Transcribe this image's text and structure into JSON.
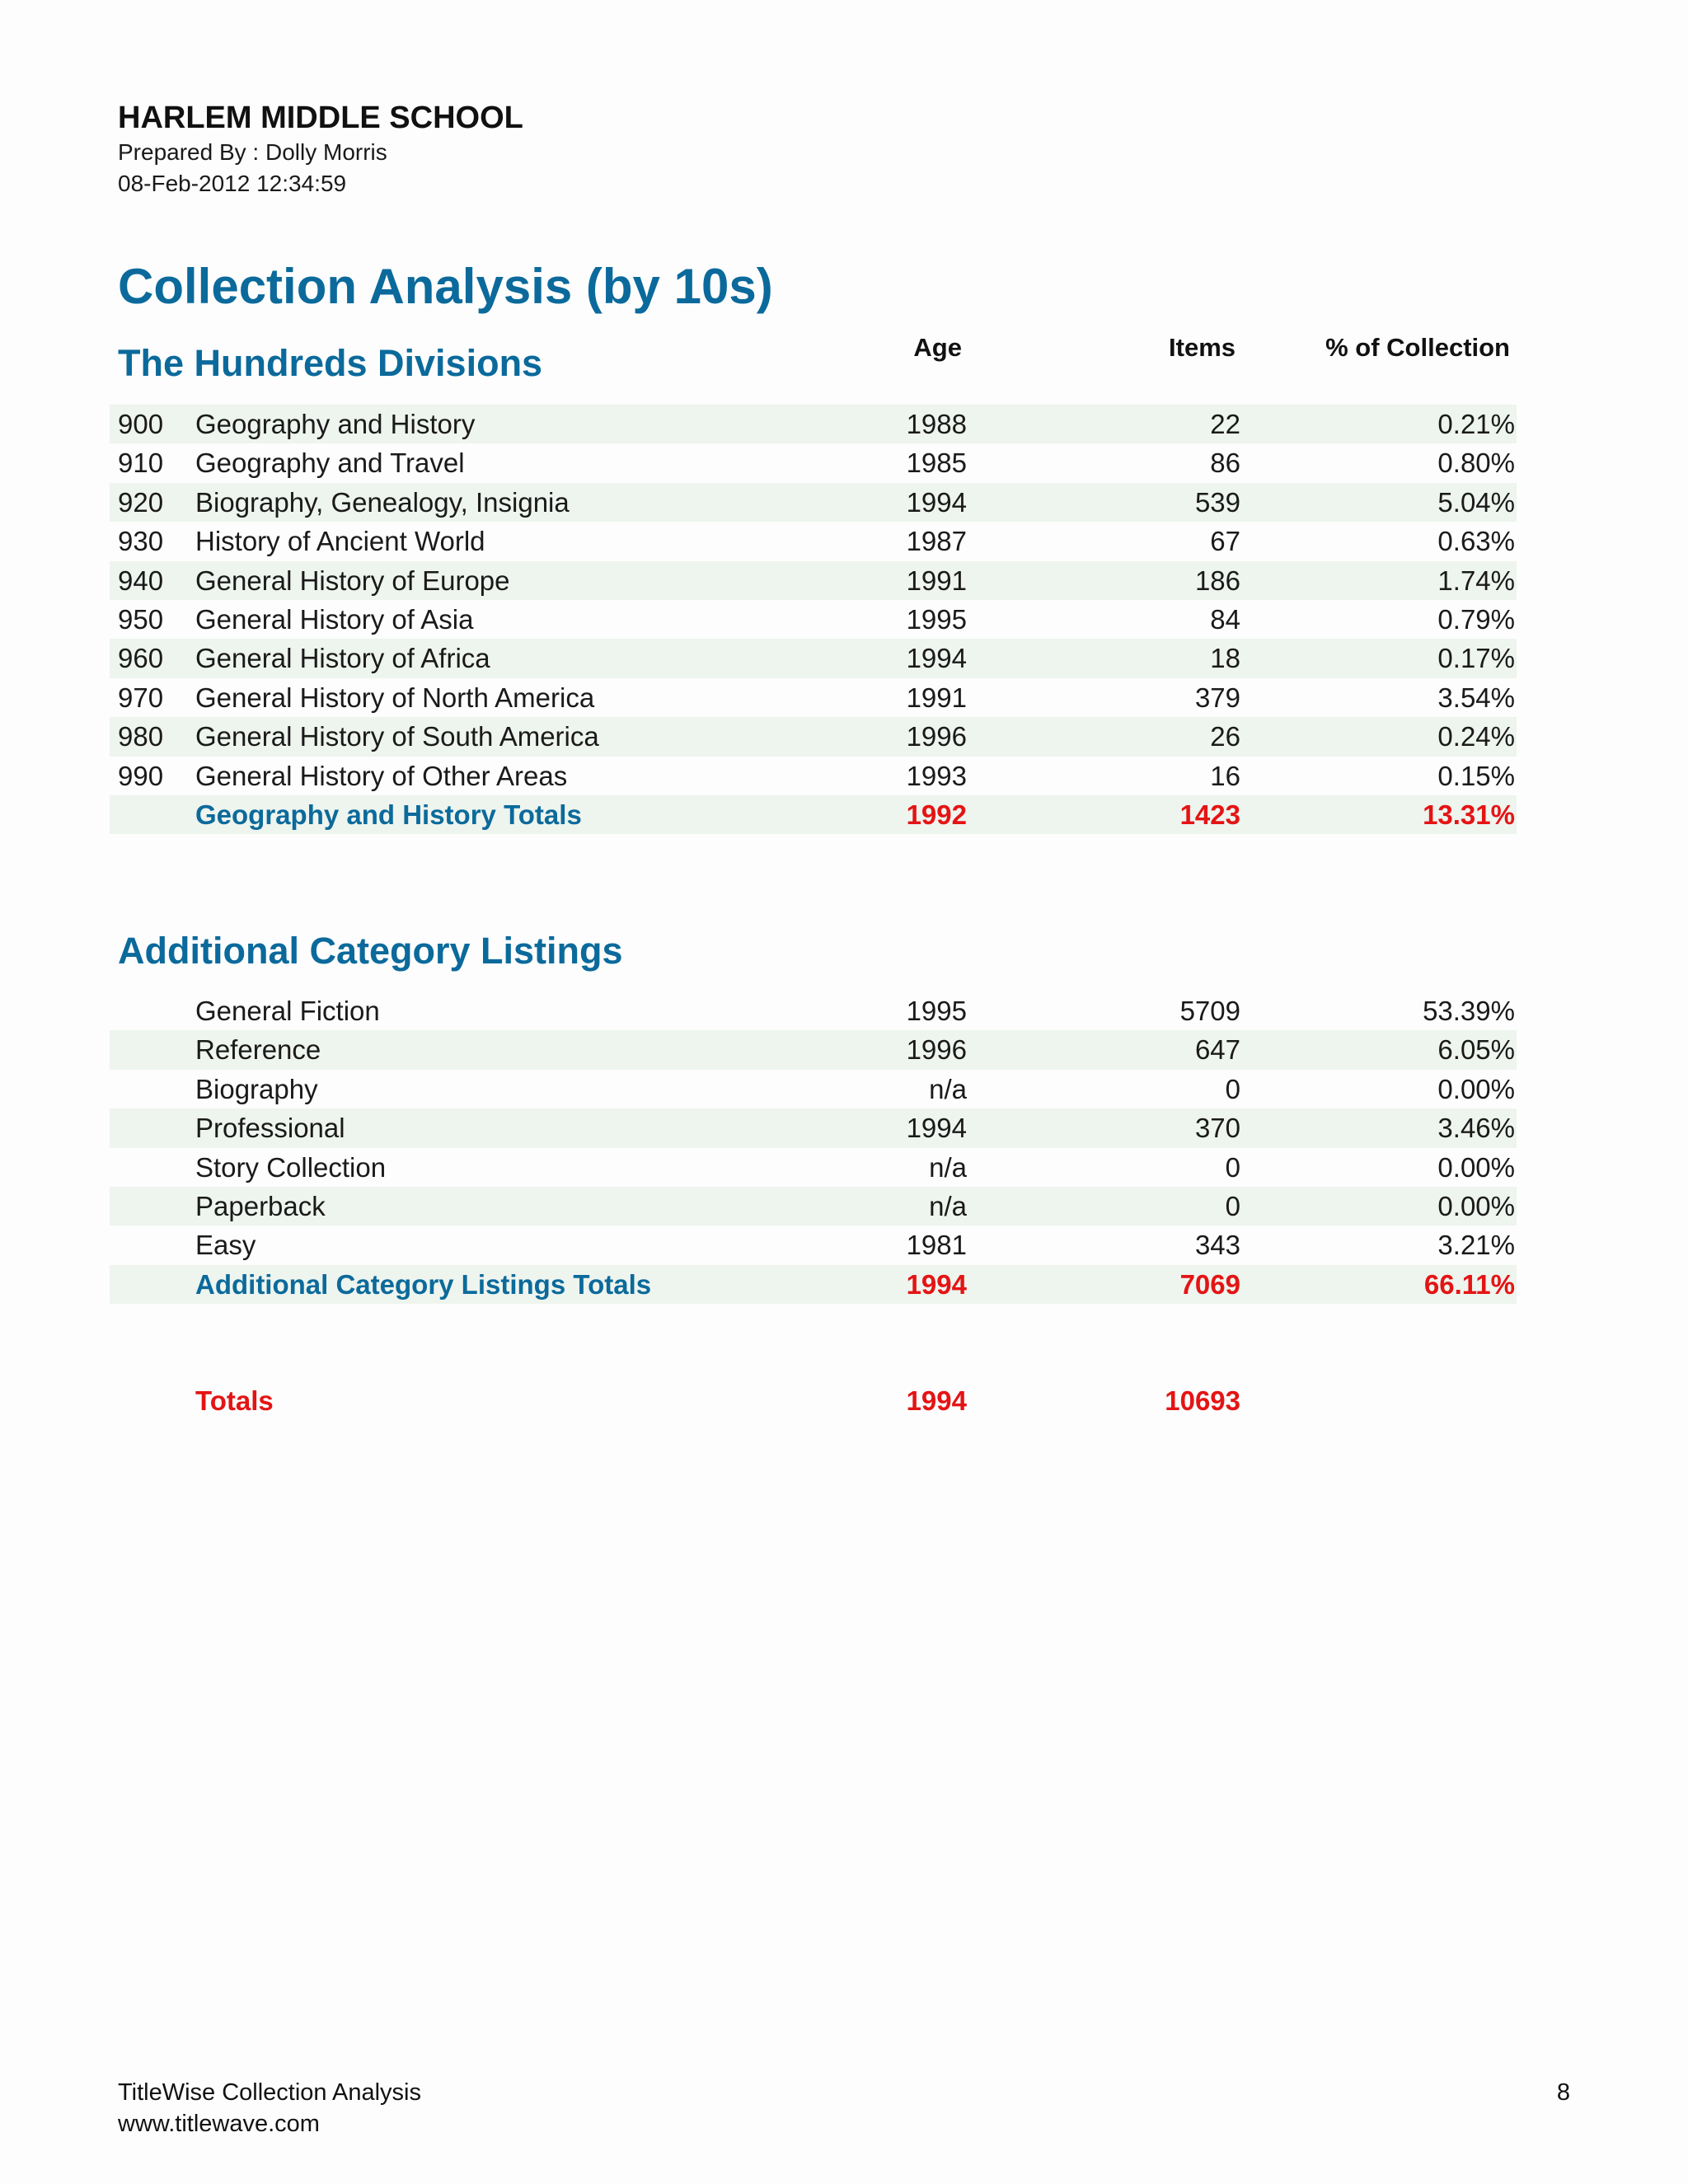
{
  "header": {
    "school": "HARLEM MIDDLE SCHOOL",
    "prepared_by": "Prepared By : Dolly Morris",
    "timestamp": "08-Feb-2012 12:34:59"
  },
  "report_title": "Collection Analysis (by 10s)",
  "columns": {
    "age": "Age",
    "items": "Items",
    "pct": "% of Collection"
  },
  "hundreds": {
    "title": "The Hundreds Divisions",
    "rows": [
      {
        "code": "900",
        "name": "Geography and History",
        "age": "1988",
        "items": "22",
        "pct": "0.21%"
      },
      {
        "code": "910",
        "name": "Geography and Travel",
        "age": "1985",
        "items": "86",
        "pct": "0.80%"
      },
      {
        "code": "920",
        "name": "Biography, Genealogy, Insignia",
        "age": "1994",
        "items": "539",
        "pct": "5.04%"
      },
      {
        "code": "930",
        "name": "History of Ancient World",
        "age": "1987",
        "items": "67",
        "pct": "0.63%"
      },
      {
        "code": "940",
        "name": "General History of Europe",
        "age": "1991",
        "items": "186",
        "pct": "1.74%"
      },
      {
        "code": "950",
        "name": "General History of Asia",
        "age": "1995",
        "items": "84",
        "pct": "0.79%"
      },
      {
        "code": "960",
        "name": "General History of Africa",
        "age": "1994",
        "items": "18",
        "pct": "0.17%"
      },
      {
        "code": "970",
        "name": "General History of North America",
        "age": "1991",
        "items": "379",
        "pct": "3.54%"
      },
      {
        "code": "980",
        "name": "General History of South America",
        "age": "1996",
        "items": "26",
        "pct": "0.24%"
      },
      {
        "code": "990",
        "name": "General History of Other Areas",
        "age": "1993",
        "items": "16",
        "pct": "0.15%"
      }
    ],
    "total": {
      "name": "Geography and History Totals",
      "age": "1992",
      "items": "1423",
      "pct": "13.31%"
    }
  },
  "additional": {
    "title": "Additional Category Listings",
    "rows": [
      {
        "name": "General Fiction",
        "age": "1995",
        "items": "5709",
        "pct": "53.39%"
      },
      {
        "name": "Reference",
        "age": "1996",
        "items": "647",
        "pct": "6.05%"
      },
      {
        "name": "Biography",
        "age": "n/a",
        "items": "0",
        "pct": "0.00%"
      },
      {
        "name": "Professional",
        "age": "1994",
        "items": "370",
        "pct": "3.46%"
      },
      {
        "name": "Story Collection",
        "age": "n/a",
        "items": "0",
        "pct": "0.00%"
      },
      {
        "name": "Paperback",
        "age": "n/a",
        "items": "0",
        "pct": "0.00%"
      },
      {
        "name": "Easy",
        "age": "1981",
        "items": "343",
        "pct": "3.21%"
      }
    ],
    "total": {
      "name": "Additional Category Listings Totals",
      "age": "1994",
      "items": "7069",
      "pct": "66.11%"
    }
  },
  "grand_total": {
    "label": "Totals",
    "age": "1994",
    "items": "10693"
  },
  "footer": {
    "product": "TitleWise Collection Analysis",
    "url": "www.titlewave.com",
    "page": "8"
  },
  "colors": {
    "heading": "#0b6a9b",
    "total": "#e41414",
    "row_shade": "#eef4ee"
  }
}
